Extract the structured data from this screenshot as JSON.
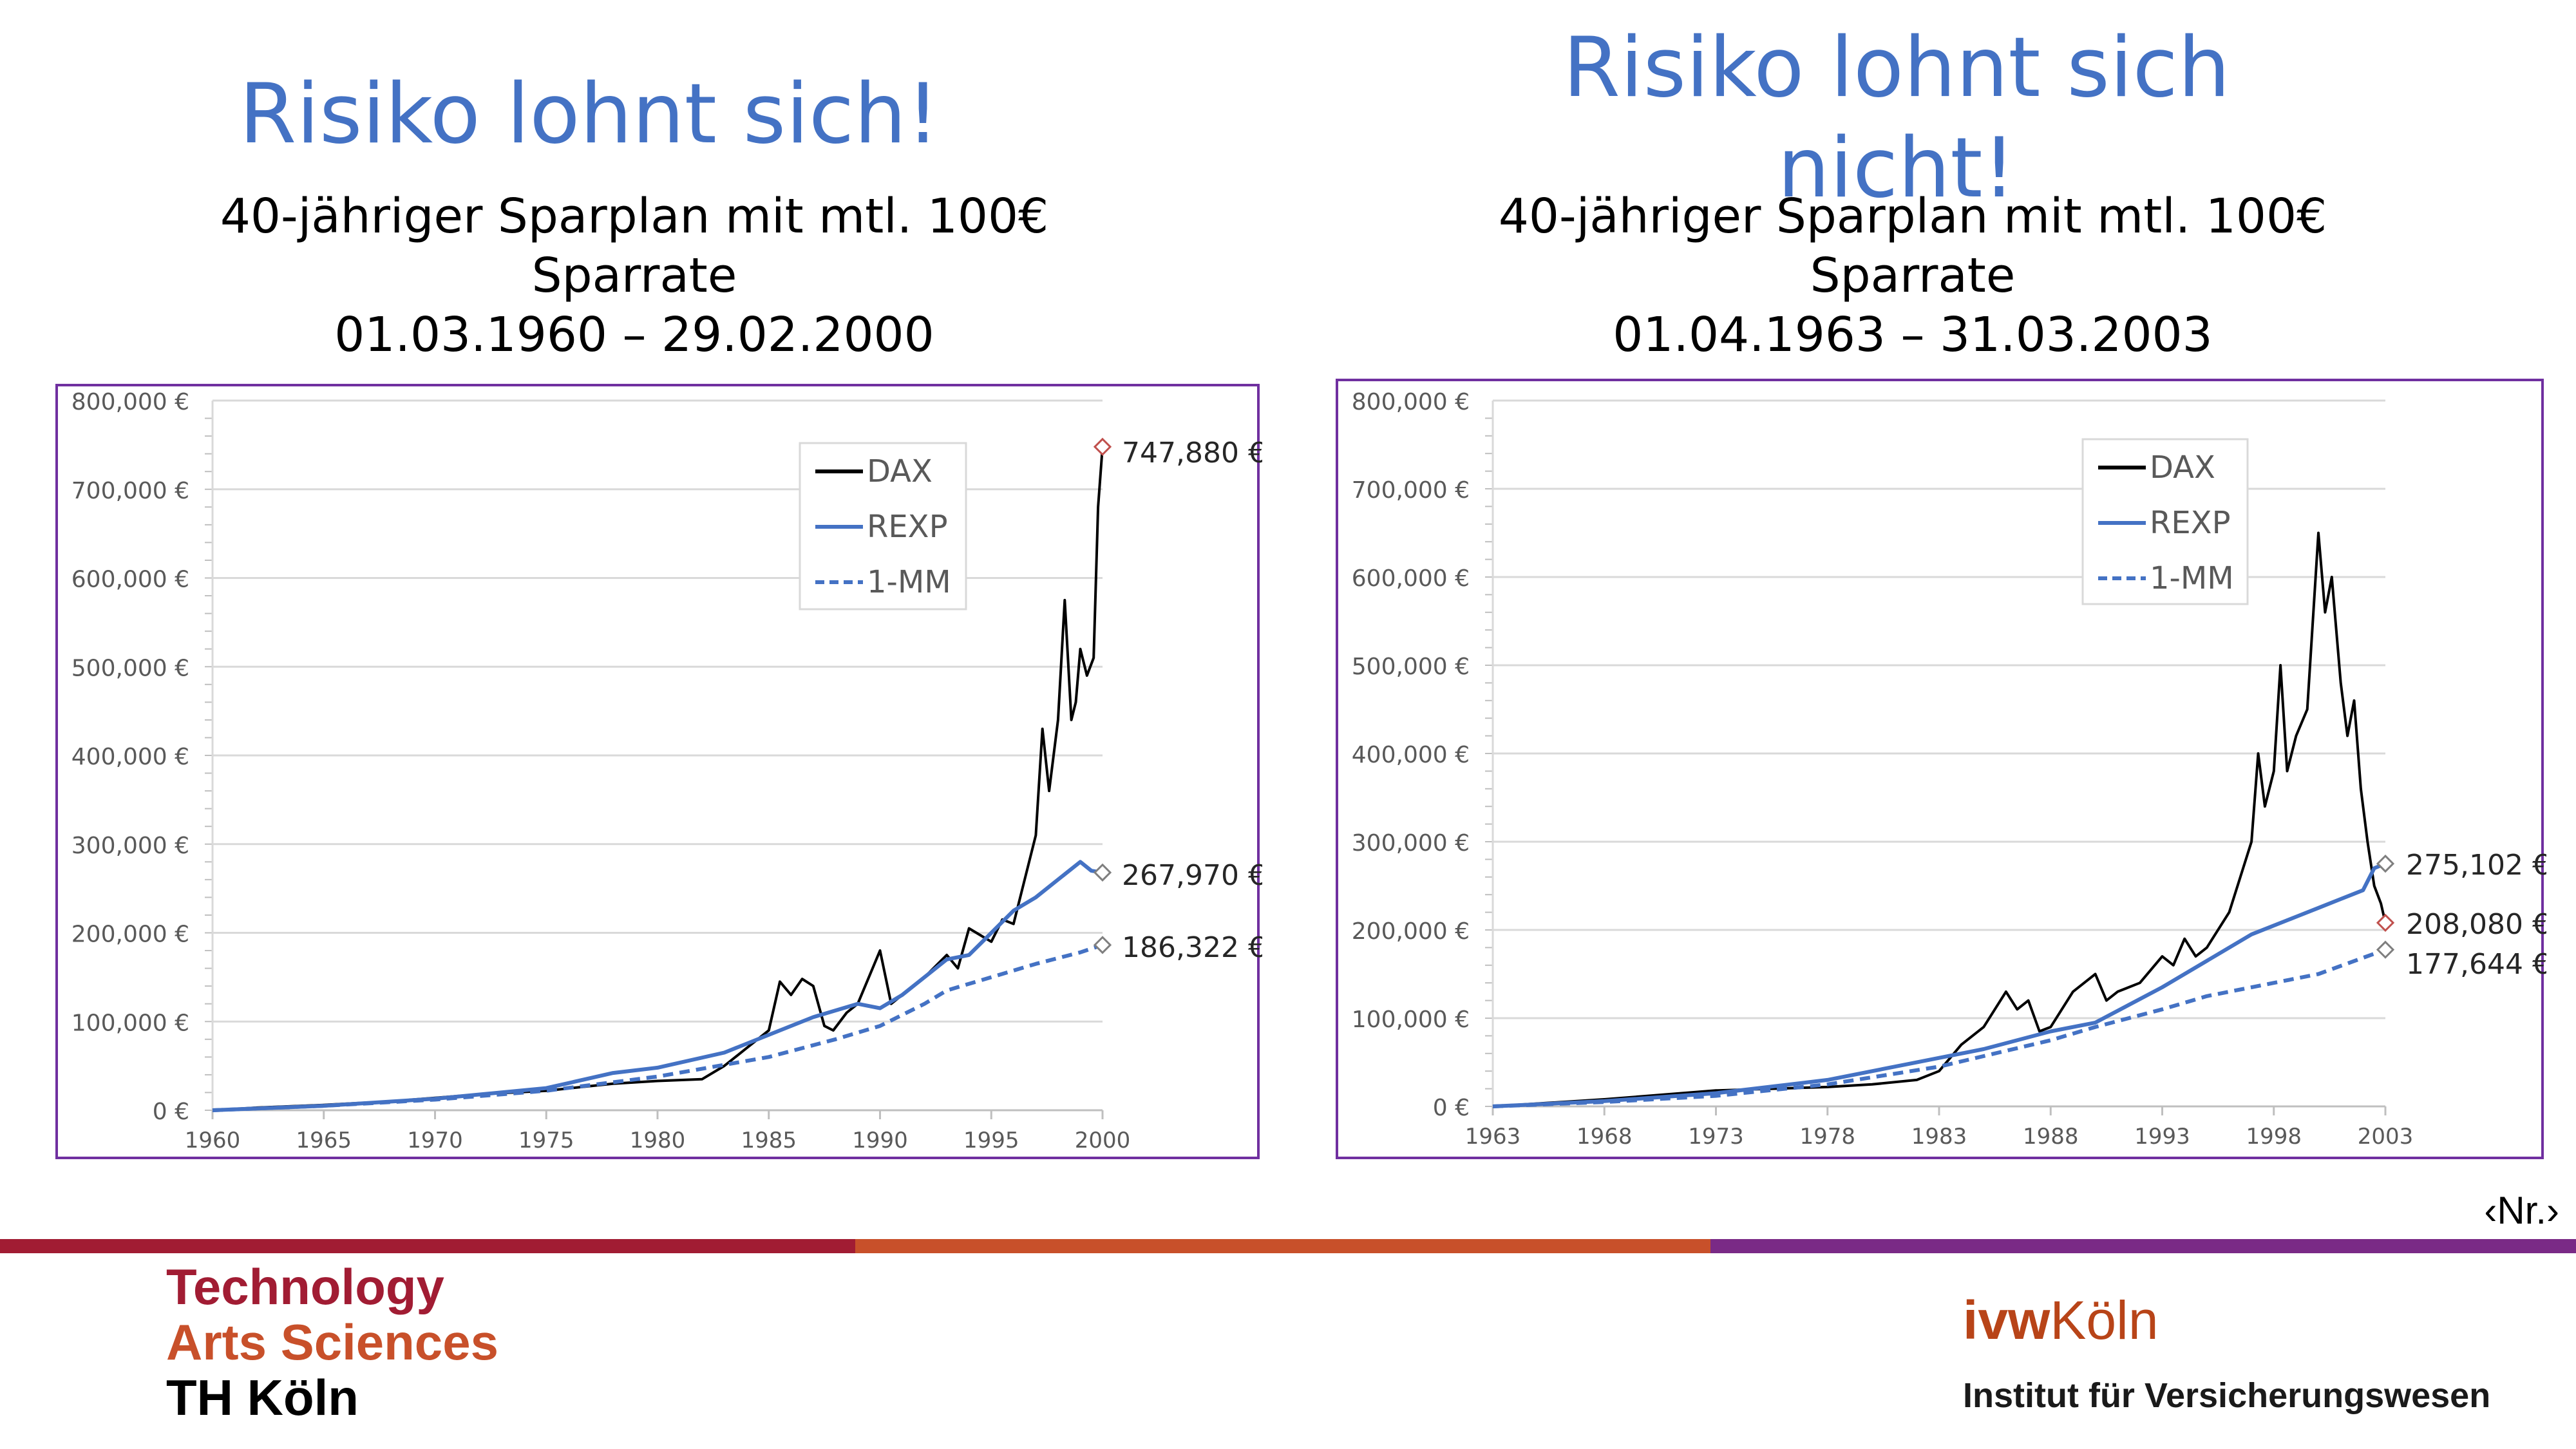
{
  "slide": {
    "left_heading": "Risiko lohnt sich!",
    "left_subtitle_line1": "40-jähriger Sparplan mit mtl. 100€ Sparrate",
    "left_subtitle_line2": "01.03.1960 – 29.02.2000",
    "right_heading_line1": "Risiko lohnt sich",
    "right_heading_line2": "nicht!",
    "right_subtitle_line1": "40-jähriger Sparplan mit mtl. 100€ Sparrate",
    "right_subtitle_line2": "01.04.1963 – 31.03.2003",
    "slide_number": "‹Nr.›"
  },
  "footer": {
    "logo_line1": "Technology",
    "logo_line2": "Arts Sciences",
    "logo_line3": "TH Köln",
    "ivw_part1": "ivw",
    "ivw_part2": "Köln",
    "institute": "Institut für Versicherungswesen",
    "bar_colors": [
      "#a11c33",
      "#c8502a",
      "#7a2a86"
    ],
    "logo_colors": [
      "#a11c33",
      "#c8502a",
      "#000000"
    ]
  },
  "chart_data": [
    {
      "type": "line",
      "xlim": [
        1960,
        2000
      ],
      "ylim": [
        0,
        800000
      ],
      "y_ticks": [
        "0 €",
        "100,000 €",
        "200,000 €",
        "300,000 €",
        "400,000 €",
        "500,000 €",
        "600,000 €",
        "700,000 €",
        "800,000 €"
      ],
      "x_ticks": [
        "1960",
        "1965",
        "1970",
        "1975",
        "1980",
        "1985",
        "1990",
        "1995",
        "2000"
      ],
      "legend_position": "top-right",
      "grid": true,
      "series": [
        {
          "name": "DAX",
          "color": "#000000",
          "dash": "solid",
          "x": [
            1960,
            1962,
            1965,
            1968,
            1970,
            1972,
            1975,
            1978,
            1980,
            1982,
            1983,
            1984,
            1985,
            1985.5,
            1986,
            1986.5,
            1987,
            1987.5,
            1987.9,
            1988.5,
            1989,
            1990,
            1990.5,
            1991,
            1992,
            1993,
            1993.5,
            1994,
            1995,
            1995.5,
            1996,
            1996.5,
            1997,
            1997.3,
            1997.6,
            1998,
            1998.3,
            1998.6,
            1998.8,
            1999,
            1999.3,
            1999.6,
            1999.8,
            2000
          ],
          "values": [
            0,
            3000,
            6000,
            10000,
            14000,
            18000,
            22000,
            30000,
            33000,
            35000,
            50000,
            70000,
            90000,
            145000,
            130000,
            148000,
            140000,
            95000,
            90000,
            110000,
            120000,
            180000,
            120000,
            130000,
            150000,
            175000,
            160000,
            205000,
            190000,
            215000,
            210000,
            260000,
            310000,
            430000,
            360000,
            440000,
            575000,
            440000,
            460000,
            520000,
            490000,
            510000,
            680000,
            747880
          ]
        },
        {
          "name": "REXP",
          "color": "#4472c4",
          "dash": "solid",
          "x": [
            1960,
            1965,
            1970,
            1975,
            1978,
            1980,
            1983,
            1985,
            1987,
            1989,
            1990,
            1991,
            1993,
            1994,
            1995,
            1996,
            1997,
            1998,
            1999,
            1999.5,
            2000
          ],
          "values": [
            0,
            5000,
            13000,
            25000,
            42000,
            48000,
            65000,
            85000,
            105000,
            120000,
            115000,
            130000,
            170000,
            175000,
            200000,
            225000,
            240000,
            260000,
            280000,
            270000,
            267970
          ]
        },
        {
          "name": "1-MM",
          "color": "#4472c4",
          "dash": "dashed",
          "x": [
            1960,
            1965,
            1970,
            1975,
            1980,
            1985,
            1988,
            1990,
            1992,
            1993,
            1995,
            1997,
            1999,
            2000
          ],
          "values": [
            0,
            5000,
            12000,
            22000,
            38000,
            60000,
            80000,
            95000,
            120000,
            135000,
            150000,
            165000,
            178000,
            186322
          ]
        }
      ],
      "end_labels": [
        {
          "series": "DAX",
          "value": 747880,
          "text": "747,880 €",
          "marker_color": "#c0504d"
        },
        {
          "series": "REXP",
          "value": 267970,
          "text": "267,970 €",
          "marker_color": "#7f7f7f"
        },
        {
          "series": "1-MM",
          "value": 186322,
          "text": "186,322 €",
          "marker_color": "#7f7f7f"
        }
      ]
    },
    {
      "type": "line",
      "xlim": [
        1963,
        2003
      ],
      "ylim": [
        0,
        800000
      ],
      "y_ticks": [
        "0 €",
        "100,000 €",
        "200,000 €",
        "300,000 €",
        "400,000 €",
        "500,000 €",
        "600,000 €",
        "700,000 €",
        "800,000 €"
      ],
      "x_ticks": [
        "1963",
        "1968",
        "1973",
        "1978",
        "1983",
        "1988",
        "1993",
        "1998",
        "2003"
      ],
      "legend_position": "top-right",
      "grid": true,
      "series": [
        {
          "name": "DAX",
          "color": "#000000",
          "dash": "solid",
          "x": [
            1963,
            1968,
            1973,
            1978,
            1980,
            1982,
            1983,
            1984,
            1985,
            1986,
            1986.5,
            1987,
            1987.5,
            1988,
            1988.5,
            1989,
            1990,
            1990.5,
            1991,
            1992,
            1993,
            1993.5,
            1994,
            1994.5,
            1995,
            1996,
            1996.5,
            1997,
            1997.3,
            1997.6,
            1998,
            1998.3,
            1998.6,
            1999,
            1999.5,
            2000,
            2000.3,
            2000.6,
            2001,
            2001.3,
            2001.6,
            2001.9,
            2002.2,
            2002.5,
            2002.8,
            2003
          ],
          "values": [
            0,
            8000,
            18000,
            22000,
            25000,
            30000,
            40000,
            70000,
            90000,
            130000,
            110000,
            120000,
            85000,
            90000,
            110000,
            130000,
            150000,
            120000,
            130000,
            140000,
            170000,
            160000,
            190000,
            170000,
            180000,
            220000,
            260000,
            300000,
            400000,
            340000,
            380000,
            500000,
            380000,
            420000,
            450000,
            650000,
            560000,
            600000,
            480000,
            420000,
            460000,
            360000,
            300000,
            250000,
            230000,
            208080
          ]
        },
        {
          "name": "REXP",
          "color": "#4472c4",
          "dash": "solid",
          "x": [
            1963,
            1968,
            1973,
            1978,
            1983,
            1985,
            1988,
            1990,
            1993,
            1995,
            1997,
            1999,
            2000,
            2001,
            2002,
            2002.5,
            2003
          ],
          "values": [
            0,
            6000,
            15000,
            30000,
            55000,
            65000,
            85000,
            95000,
            135000,
            165000,
            195000,
            215000,
            225000,
            235000,
            245000,
            270000,
            275102
          ]
        },
        {
          "name": "1-MM",
          "color": "#4472c4",
          "dash": "dashed",
          "x": [
            1963,
            1968,
            1973,
            1978,
            1983,
            1988,
            1990,
            1993,
            1995,
            1998,
            2000,
            2003
          ],
          "values": [
            0,
            5000,
            12000,
            25000,
            45000,
            75000,
            90000,
            110000,
            125000,
            140000,
            150000,
            177644
          ]
        }
      ],
      "end_labels": [
        {
          "series": "REXP",
          "value": 275102,
          "text": "275,102 €",
          "marker_color": "#7f7f7f"
        },
        {
          "series": "DAX",
          "value": 208080,
          "text": "208,080 €",
          "marker_color": "#c0504d"
        },
        {
          "series": "1-MM",
          "value": 177644,
          "text": "177,644 €",
          "marker_color": "#7f7f7f"
        }
      ]
    }
  ]
}
